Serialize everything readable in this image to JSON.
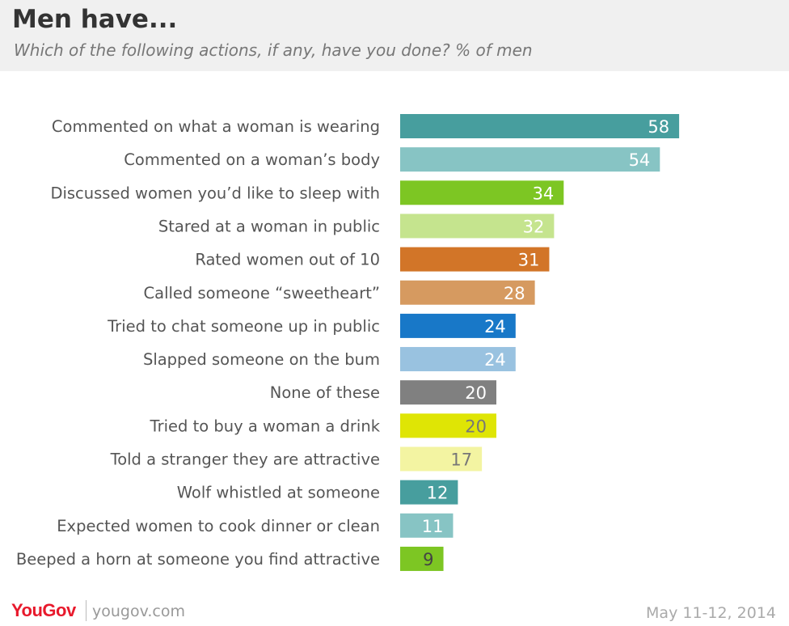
{
  "header": {
    "title": "Men have...",
    "subtitle": "Which of the following actions, if any, have you done? % of men"
  },
  "chart_data": {
    "type": "bar",
    "orientation": "horizontal",
    "title": "Men have...",
    "subtitle": "Which of the following actions, if any, have you done? % of men",
    "categories": [
      "Commented on what a woman is wearing",
      "Commented on a woman’s body",
      "Discussed women you’d like to sleep with",
      "Stared at a woman in public",
      "Rated women out of 10",
      "Called someone “sweetheart”",
      "Tried to chat someone up in public",
      "Slapped someone on the bum",
      "None of these",
      "Tried to buy a woman a drink",
      "Told a stranger they are attractive",
      "Wolf whistled at someone",
      "Expected women to cook dinner or clean",
      "Beeped a horn at someone you find attractive"
    ],
    "values": [
      58,
      54,
      34,
      32,
      31,
      28,
      24,
      24,
      20,
      20,
      17,
      12,
      11,
      9
    ],
    "colors": [
      "#479e9e",
      "#87c4c4",
      "#7dc623",
      "#c5e48e",
      "#d27528",
      "#d69a60",
      "#1878c8",
      "#99c2e0",
      "#808080",
      "#dfe505",
      "#f3f4a2",
      "#479e9e",
      "#87c4c4",
      "#7dc623"
    ],
    "value_label_colors": [
      "#ffffff",
      "#ffffff",
      "#ffffff",
      "#ffffff",
      "#ffffff",
      "#ffffff",
      "#ffffff",
      "#ffffff",
      "#ffffff",
      "#777777",
      "#777777",
      "#ffffff",
      "#ffffff",
      "#444444"
    ],
    "xlabel": "",
    "ylabel": "",
    "xlim": [
      0,
      100
    ],
    "grid": false,
    "legend": "none"
  },
  "footer": {
    "logo": "YouGov",
    "url": "yougov.com",
    "date": "May 11-12, 2014"
  }
}
